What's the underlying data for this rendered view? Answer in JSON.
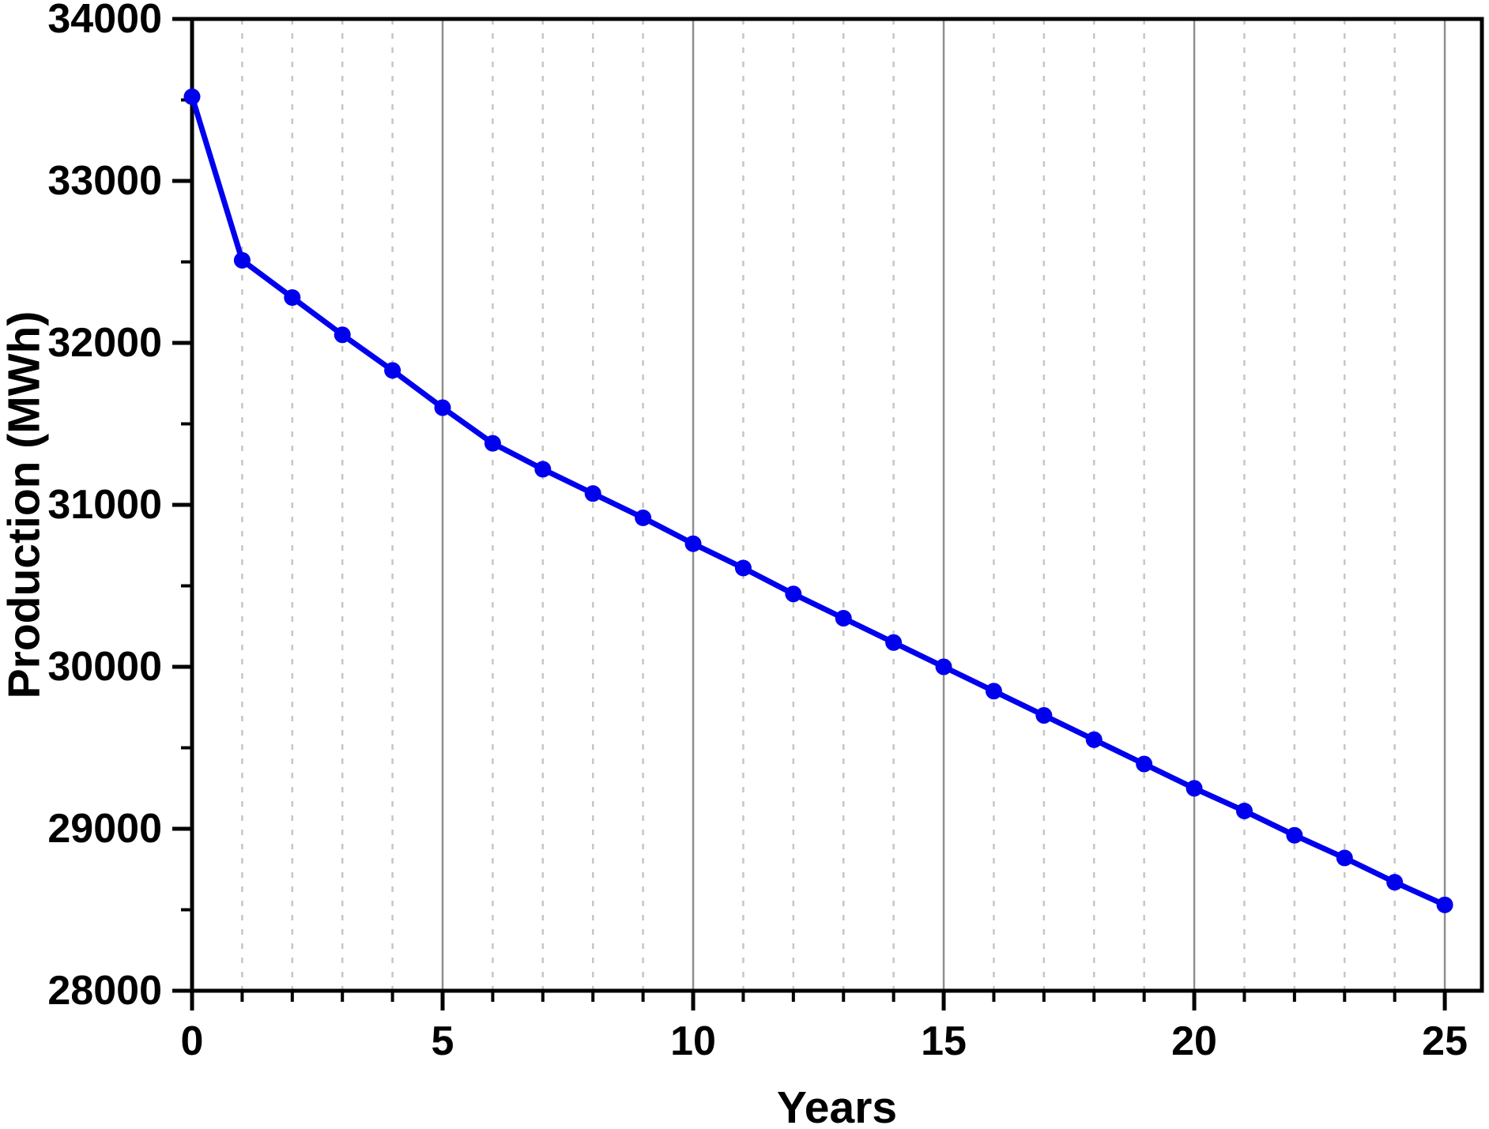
{
  "chart_data": {
    "type": "line",
    "title": "",
    "xlabel": "Years",
    "ylabel": "Production (MWh)",
    "legend_position": "none",
    "x": [
      0,
      1,
      2,
      3,
      4,
      5,
      6,
      7,
      8,
      9,
      10,
      11,
      12,
      13,
      14,
      15,
      16,
      17,
      18,
      19,
      20,
      21,
      22,
      23,
      24,
      25
    ],
    "series": [
      {
        "name": "Production (MWh)",
        "marker": "circle",
        "values": [
          33520,
          32510,
          32280,
          32050,
          31830,
          31600,
          31380,
          31220,
          31070,
          30920,
          30760,
          30610,
          30450,
          30300,
          30150,
          30000,
          29850,
          29700,
          29550,
          29400,
          29250,
          29110,
          28960,
          28820,
          28670,
          28530
        ]
      }
    ],
    "xlim": [
      0,
      25.74
    ],
    "ylim": [
      28000,
      34000
    ],
    "x_major_ticks": [
      0,
      5,
      10,
      15,
      20,
      25
    ],
    "x_minor_tick_step": 1,
    "y_major_ticks": [
      28000,
      29000,
      30000,
      31000,
      32000,
      33000,
      34000
    ],
    "y_minor_ticks": [
      28500,
      29500,
      30500,
      31500,
      32500,
      33500
    ],
    "grid": {
      "vertical_minor": "dashed line at every year",
      "vertical_major": "solid line at every 5 years",
      "horizontal": "none"
    },
    "colors": {
      "line": "#0000EE",
      "marker": "#0000EE",
      "axis": "#000000",
      "text": "#000000",
      "major_grid": "#8f8f8f",
      "minor_grid": "#c6c6c6",
      "background": "#ffffff"
    }
  }
}
